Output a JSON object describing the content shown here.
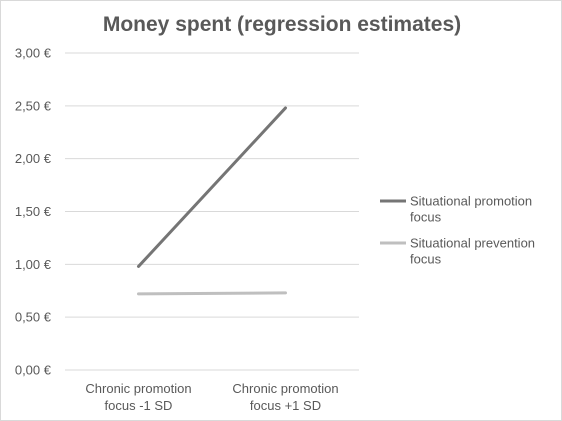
{
  "chart_data": {
    "type": "line",
    "title": "Money spent (regression estimates)",
    "xlabel": "",
    "ylabel": "",
    "categories": [
      [
        "Chronic promotion",
        "focus -1 SD"
      ],
      [
        "Chronic promotion",
        "focus +1 SD"
      ]
    ],
    "series": [
      {
        "name": [
          "Situational promotion",
          "focus"
        ],
        "values": [
          0.98,
          2.48
        ],
        "color": "#757575"
      },
      {
        "name": [
          "Situational prevention",
          "focus"
        ],
        "values": [
          0.72,
          0.73
        ],
        "color": "#bfbfbf"
      }
    ],
    "ylim": [
      0,
      3
    ],
    "yticks": [
      "0,00 €",
      "0,50 €",
      "1,00 €",
      "1,50 €",
      "2,00 €",
      "2,50 €",
      "3,00 €"
    ],
    "ytick_values": [
      0,
      0.5,
      1,
      1.5,
      2,
      2.5,
      3
    ],
    "grid": true,
    "legend_position": "right"
  }
}
